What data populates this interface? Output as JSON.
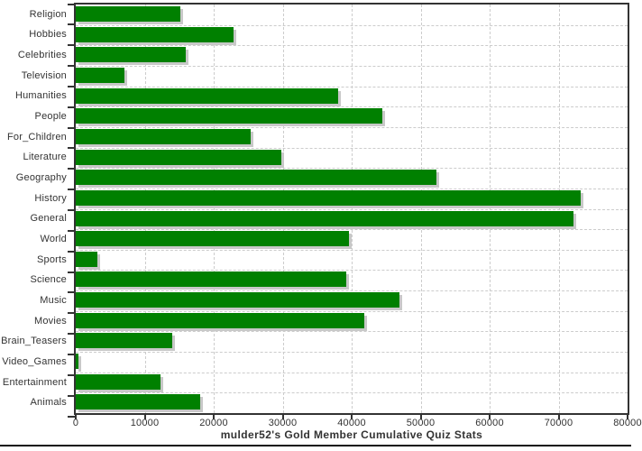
{
  "chart_data": {
    "type": "bar",
    "orientation": "horizontal",
    "title": "mulder52's Gold Member Cumulative Quiz Stats",
    "categories": [
      "Religion",
      "Hobbies",
      "Celebrities",
      "Television",
      "Humanities",
      "People",
      "For_Children",
      "Literature",
      "Geography",
      "History",
      "General",
      "World",
      "Sports",
      "Science",
      "Music",
      "Movies",
      "Brain_Teasers",
      "Video_Games",
      "Entertainment",
      "Animals"
    ],
    "values": [
      15200,
      22900,
      15900,
      7100,
      38100,
      44400,
      25400,
      29800,
      52300,
      73200,
      72200,
      39600,
      3200,
      39200,
      46900,
      41800,
      14000,
      400,
      12300,
      18000
    ],
    "xlim": [
      0,
      80000
    ],
    "x_ticks": [
      0,
      10000,
      20000,
      30000,
      40000,
      50000,
      60000,
      70000,
      80000
    ],
    "xlabel": "",
    "ylabel": "",
    "grid": "dashed",
    "legend_position": "none",
    "bar_color": "#008000",
    "bar_shadow_color": "#c8c8c8",
    "grid_color": "#cccccc",
    "axis_color": "#333333"
  }
}
